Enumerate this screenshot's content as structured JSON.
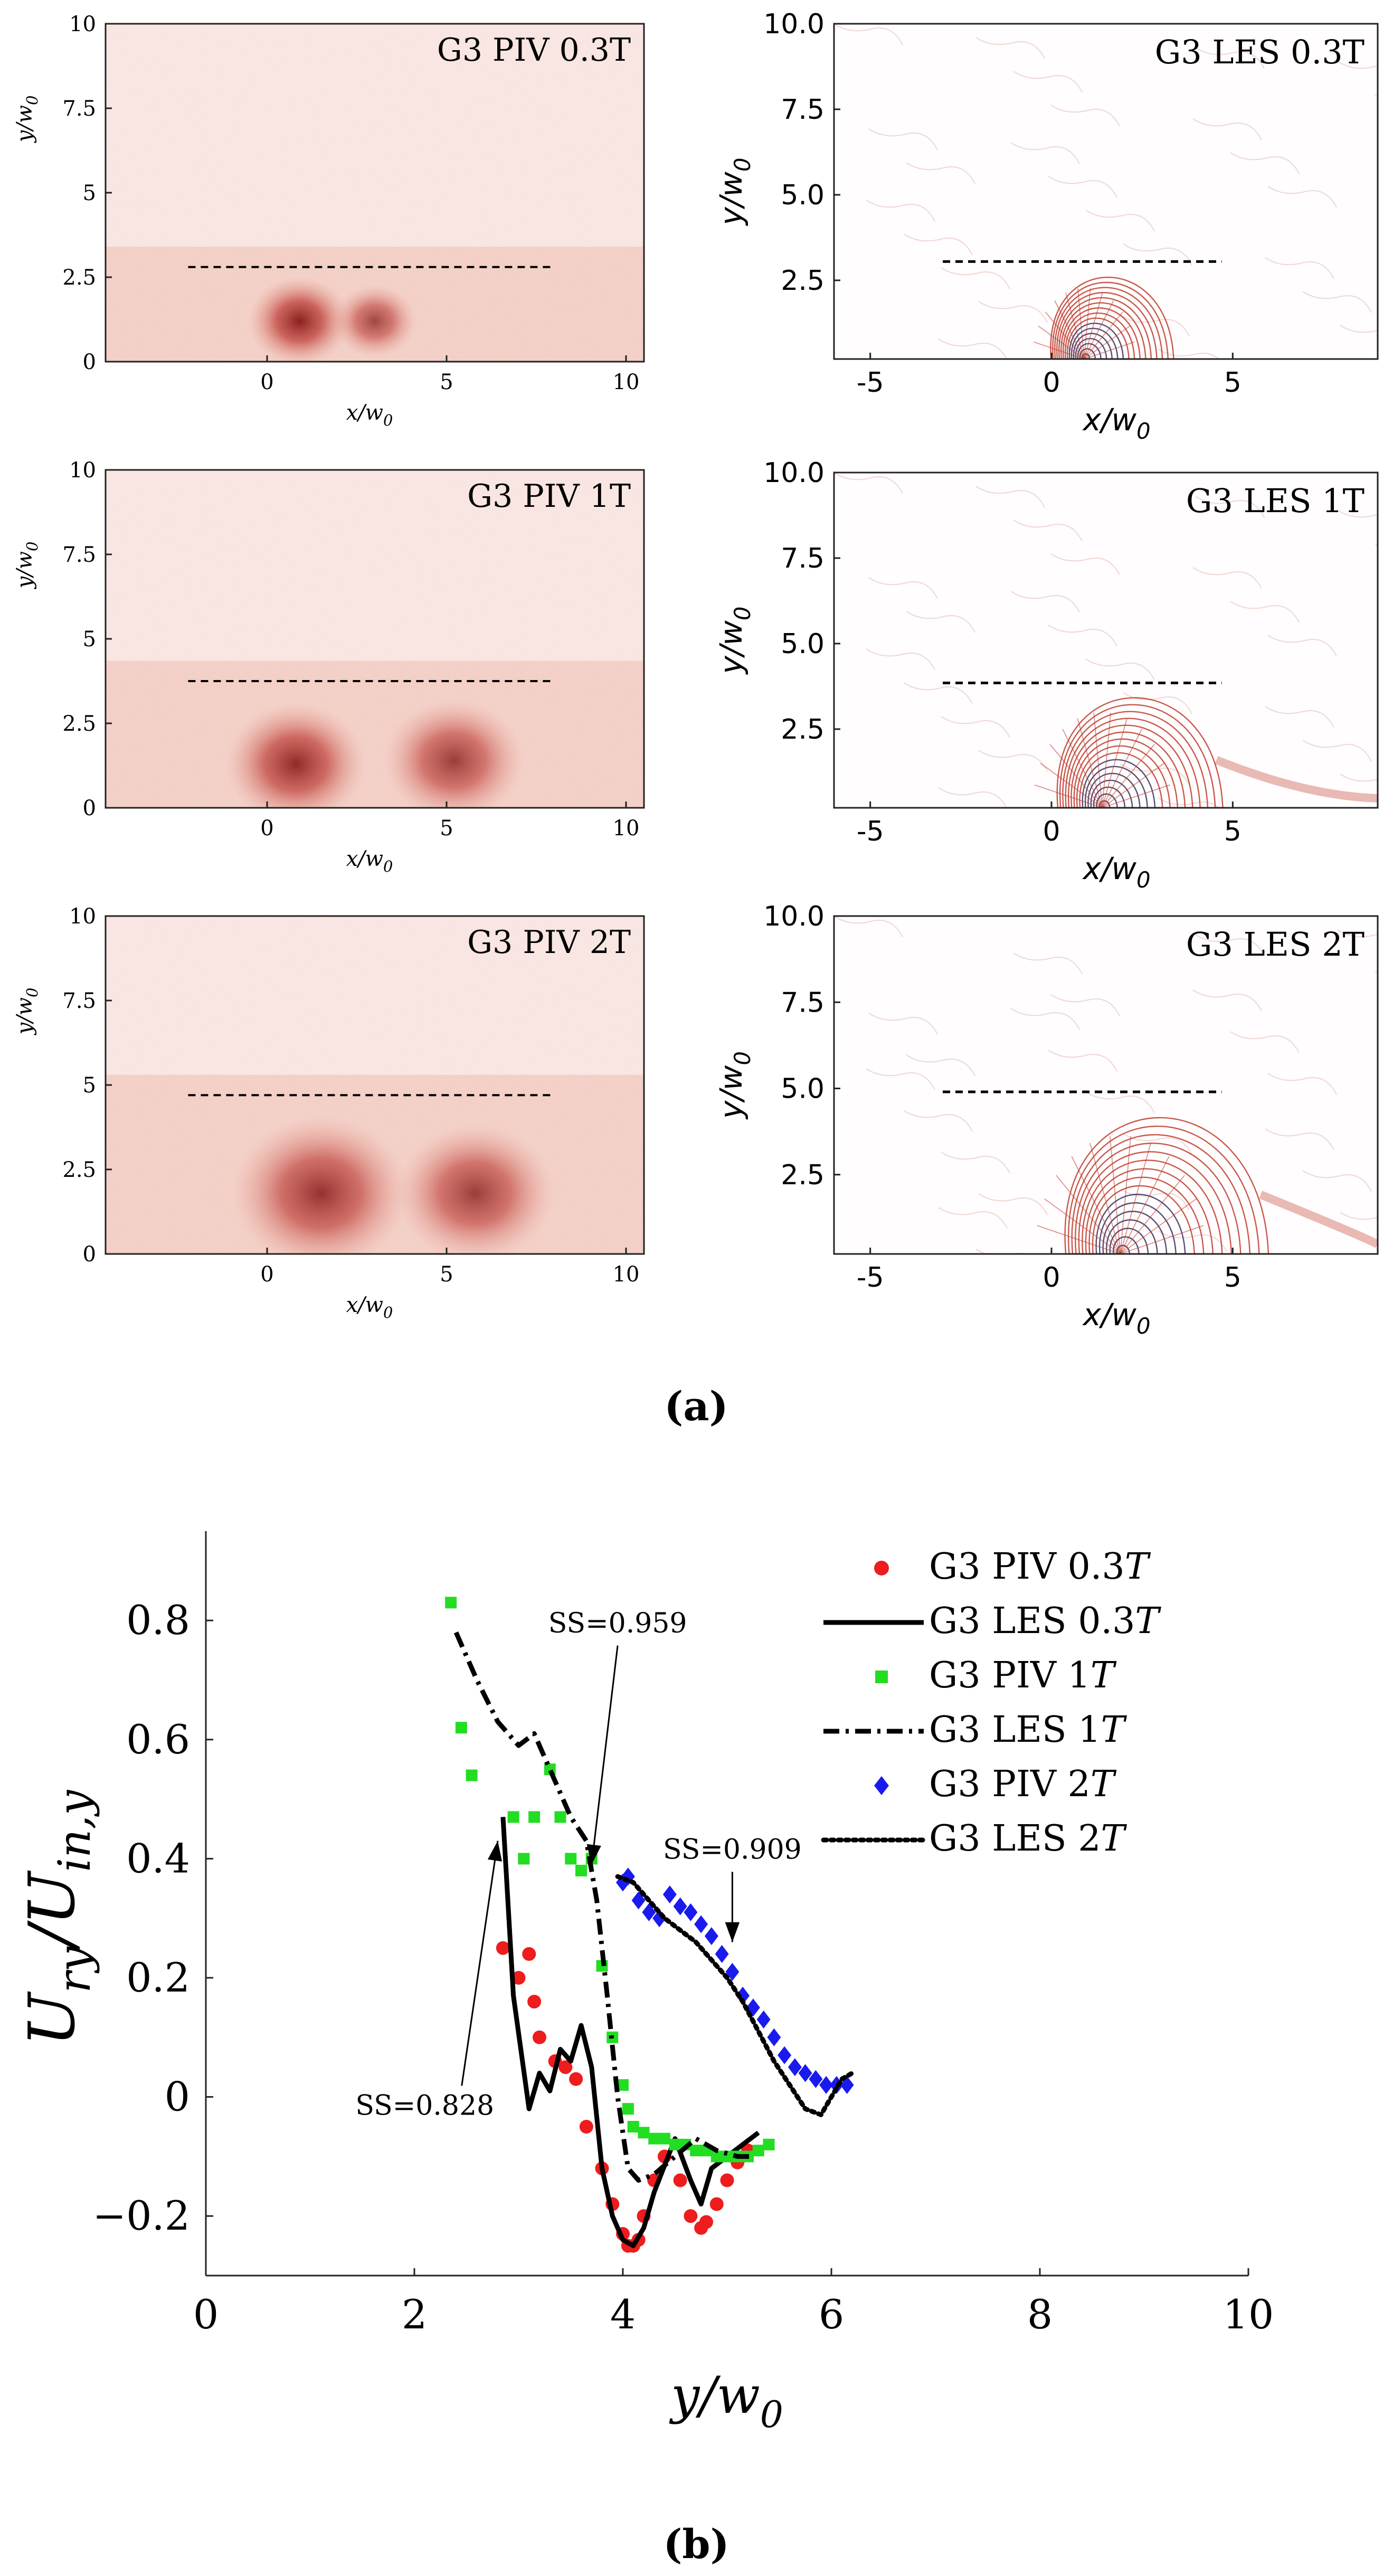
{
  "figure": {
    "label_a": "(a)",
    "label_b": "(b)",
    "colors": {
      "piv_heat": "#b0302c",
      "les_vector": "#c0392b",
      "les_core": "#2d2d55",
      "dash_line": "#000000"
    }
  },
  "piv_panels": [
    {
      "title": "G3 PIV 0.3T",
      "xlabel": "x/w",
      "xlabel_sub": "0",
      "ylabel": "y/w",
      "ylabel_sub": "0",
      "xticks": [
        "0",
        "5",
        "10"
      ],
      "yticks": [
        "0",
        "2.5",
        "5",
        "7.5",
        "10"
      ],
      "xlim": [
        -4.5,
        10.5
      ],
      "ylim": [
        0,
        10
      ],
      "dashed_y": 2.8,
      "dashed_x": [
        -2.2,
        8
      ],
      "blobs": [
        {
          "x": 0.9,
          "y": 1.2,
          "r": 1.1,
          "a": 0.95
        },
        {
          "x": 3.0,
          "y": 1.2,
          "r": 0.9,
          "a": 0.75
        }
      ]
    },
    {
      "title": "G3 PIV 1T",
      "xlabel": "x/w",
      "xlabel_sub": "0",
      "ylabel": "y/w",
      "ylabel_sub": "0",
      "xticks": [
        "0",
        "5",
        "10"
      ],
      "yticks": [
        "0",
        "2.5",
        "5",
        "7.5",
        "10"
      ],
      "xlim": [
        -4.5,
        10.5
      ],
      "ylim": [
        0,
        10
      ],
      "dashed_y": 3.75,
      "dashed_x": [
        -2.2,
        8
      ],
      "blobs": [
        {
          "x": 0.8,
          "y": 1.3,
          "r": 1.5,
          "a": 0.9
        },
        {
          "x": 5.2,
          "y": 1.4,
          "r": 1.5,
          "a": 0.8
        }
      ]
    },
    {
      "title": "G3 PIV 2T",
      "xlabel": "x/w",
      "xlabel_sub": "0",
      "ylabel": "y/w",
      "ylabel_sub": "0",
      "xticks": [
        "0",
        "5",
        "10"
      ],
      "yticks": [
        "0",
        "2.5",
        "5",
        "7.5",
        "10"
      ],
      "xlim": [
        -4.5,
        10.5
      ],
      "ylim": [
        0,
        10
      ],
      "dashed_y": 4.7,
      "dashed_x": [
        -2.2,
        8
      ],
      "blobs": [
        {
          "x": 1.5,
          "y": 1.8,
          "r": 1.9,
          "a": 0.85
        },
        {
          "x": 5.8,
          "y": 1.8,
          "r": 1.7,
          "a": 0.8
        }
      ]
    }
  ],
  "les_panels": [
    {
      "title": "G3 LES 0.3T",
      "xlabel": "x/w",
      "xlabel_sub": "0",
      "ylabel": "y/w",
      "ylabel_sub": "0",
      "xticks": [
        "-5",
        "0",
        "5"
      ],
      "yticks": [
        "2.5",
        "5.0",
        "7.5",
        "10.0"
      ],
      "xlim": [
        -6,
        9
      ],
      "ylim": [
        0.2,
        10
      ],
      "dashed_y": 3.05,
      "dashed_x": [
        -3,
        4.7
      ],
      "vortex": {
        "cx": 0.9,
        "r": 2.6,
        "tail": 0
      }
    },
    {
      "title": "G3 LES 1T",
      "xlabel": "x/w",
      "xlabel_sub": "0",
      "ylabel": "y/w",
      "ylabel_sub": "0",
      "xticks": [
        "-5",
        "0",
        "5"
      ],
      "yticks": [
        "2.5",
        "5.0",
        "7.5",
        "10.0"
      ],
      "xlim": [
        -6,
        9
      ],
      "ylim": [
        0.2,
        10
      ],
      "dashed_y": 3.85,
      "dashed_x": [
        -3,
        4.7
      ],
      "vortex": {
        "cx": 1.4,
        "r": 3.5,
        "tail": 1
      }
    },
    {
      "title": "G3 LES 2T",
      "xlabel": "x/w",
      "xlabel_sub": "0",
      "ylabel": "y/w",
      "ylabel_sub": "0",
      "xticks": [
        "-5",
        "0",
        "5"
      ],
      "yticks": [
        "2.5",
        "5.0",
        "7.5",
        "10.0"
      ],
      "xlim": [
        -6,
        9
      ],
      "ylim": [
        0.2,
        10
      ],
      "dashed_y": 4.9,
      "dashed_x": [
        -3,
        4.7
      ],
      "vortex": {
        "cx": 1.9,
        "r": 4.3,
        "tail": 1
      }
    }
  ],
  "chart_data": {
    "type": "scatter",
    "xlabel": "y/w",
    "xlabel_sub": "0",
    "ylabel": "U",
    "ylabel_sub1": "ry",
    "ylabel_sep": "/U",
    "ylabel_sub2": "in,y",
    "xlim": [
      0,
      10
    ],
    "ylim": [
      -0.3,
      0.95
    ],
    "xticks": [
      "0",
      "2",
      "4",
      "6",
      "8",
      "10"
    ],
    "yticks": [
      "−0.2",
      "0",
      "0.2",
      "0.4",
      "0.6",
      "0.8"
    ],
    "ytick_values": [
      -0.2,
      0,
      0.2,
      0.4,
      0.6,
      0.8
    ],
    "xtick_values": [
      0,
      2,
      4,
      6,
      8,
      10
    ],
    "legend": [
      {
        "label": "G3 PIV 0.3",
        "italic": "T",
        "marker": "circle",
        "color": "#ee1c1c"
      },
      {
        "label": "G3 LES 0.3",
        "italic": "T",
        "marker": "solid",
        "color": "#000000"
      },
      {
        "label": "G3 PIV 1",
        "italic": "T",
        "marker": "square",
        "color": "#22dd22"
      },
      {
        "label": "G3 LES 1",
        "italic": "T",
        "marker": "dashdot",
        "color": "#000000"
      },
      {
        "label": "G3 PIV 2",
        "italic": "T",
        "marker": "diamond",
        "color": "#1a1aee"
      },
      {
        "label": "G3 LES 2",
        "italic": "T",
        "marker": "dotted",
        "color": "#000000"
      }
    ],
    "series": [
      {
        "name": "G3 PIV 0.3T",
        "kind": "points",
        "marker": "circle",
        "color": "#ee1c1c",
        "x": [
          2.85,
          3.0,
          3.1,
          3.15,
          3.2,
          3.35,
          3.45,
          3.55,
          3.65,
          3.8,
          3.9,
          4.0,
          4.05,
          4.1,
          4.15,
          4.2,
          4.3,
          4.4,
          4.55,
          4.65,
          4.75,
          4.8,
          4.9,
          5.0,
          5.1,
          5.2
        ],
        "y": [
          0.25,
          0.2,
          0.24,
          0.16,
          0.1,
          0.06,
          0.05,
          0.03,
          -0.05,
          -0.12,
          -0.18,
          -0.23,
          -0.25,
          -0.25,
          -0.24,
          -0.2,
          -0.14,
          -0.1,
          -0.14,
          -0.2,
          -0.22,
          -0.21,
          -0.18,
          -0.14,
          -0.11,
          -0.09
        ]
      },
      {
        "name": "G3 LES 0.3T",
        "kind": "line",
        "dash": "solid",
        "color": "#000000",
        "x": [
          2.85,
          2.95,
          3.1,
          3.2,
          3.3,
          3.4,
          3.5,
          3.6,
          3.7,
          3.8,
          3.9,
          4.0,
          4.1,
          4.2,
          4.3,
          4.5,
          4.65,
          4.75,
          4.85,
          5.0,
          5.15,
          5.3
        ],
        "y": [
          0.47,
          0.17,
          -0.02,
          0.04,
          0.01,
          0.08,
          0.06,
          0.12,
          0.05,
          -0.12,
          -0.2,
          -0.24,
          -0.25,
          -0.22,
          -0.16,
          -0.07,
          -0.14,
          -0.18,
          -0.12,
          -0.1,
          -0.08,
          -0.06
        ]
      },
      {
        "name": "G3 PIV 1T",
        "kind": "points",
        "marker": "square",
        "color": "#22dd22",
        "x": [
          2.35,
          2.45,
          2.55,
          2.95,
          3.05,
          3.15,
          3.3,
          3.4,
          3.5,
          3.6,
          3.7,
          3.8,
          3.9,
          4.0,
          4.05,
          4.1,
          4.2,
          4.3,
          4.4,
          4.5,
          4.6,
          4.7,
          4.8,
          4.9,
          5.0,
          5.1,
          5.2,
          5.3,
          5.4
        ],
        "y": [
          0.83,
          0.62,
          0.54,
          0.47,
          0.4,
          0.47,
          0.55,
          0.47,
          0.4,
          0.38,
          0.4,
          0.22,
          0.1,
          0.02,
          -0.02,
          -0.05,
          -0.06,
          -0.07,
          -0.07,
          -0.08,
          -0.08,
          -0.09,
          -0.09,
          -0.1,
          -0.1,
          -0.1,
          -0.1,
          -0.09,
          -0.08
        ]
      },
      {
        "name": "G3 LES 1T",
        "kind": "line",
        "dash": "dashdot",
        "color": "#000000",
        "x": [
          2.4,
          2.6,
          2.8,
          3.0,
          3.15,
          3.3,
          3.5,
          3.65,
          3.75,
          3.85,
          3.95,
          4.05,
          4.15,
          4.3,
          4.5,
          4.7,
          4.9,
          5.1,
          5.25
        ],
        "y": [
          0.78,
          0.7,
          0.63,
          0.59,
          0.61,
          0.55,
          0.47,
          0.43,
          0.33,
          0.17,
          0.0,
          -0.12,
          -0.14,
          -0.13,
          -0.1,
          -0.07,
          -0.09,
          -0.1,
          -0.1
        ]
      },
      {
        "name": "G3 PIV 2T",
        "kind": "points",
        "marker": "diamond",
        "color": "#1a1aee",
        "x": [
          4.0,
          4.05,
          4.15,
          4.25,
          4.35,
          4.45,
          4.55,
          4.65,
          4.75,
          4.85,
          4.95,
          5.05,
          5.15,
          5.25,
          5.35,
          5.45,
          5.55,
          5.65,
          5.75,
          5.85,
          5.95,
          6.05,
          6.15
        ],
        "y": [
          0.36,
          0.37,
          0.33,
          0.31,
          0.3,
          0.34,
          0.32,
          0.31,
          0.29,
          0.27,
          0.24,
          0.21,
          0.17,
          0.15,
          0.13,
          0.1,
          0.07,
          0.05,
          0.04,
          0.03,
          0.02,
          0.02,
          0.02
        ]
      },
      {
        "name": "G3 LES 2T",
        "kind": "line",
        "dash": "dotted",
        "color": "#000000",
        "x": [
          3.95,
          4.1,
          4.25,
          4.4,
          4.55,
          4.7,
          4.85,
          5.0,
          5.15,
          5.3,
          5.45,
          5.6,
          5.75,
          5.9,
          6.0,
          6.1,
          6.2
        ],
        "y": [
          0.37,
          0.36,
          0.33,
          0.3,
          0.28,
          0.26,
          0.23,
          0.2,
          0.16,
          0.11,
          0.06,
          0.02,
          -0.02,
          -0.03,
          0.0,
          0.03,
          0.04
        ]
      }
    ],
    "annotations": [
      {
        "text": "SS=0.959",
        "tx": 3.95,
        "ty": 0.78,
        "ax": 3.7,
        "ay": 0.39
      },
      {
        "text": "SS=0.909",
        "tx": 5.05,
        "ty": 0.4,
        "ax": 5.05,
        "ay": 0.26
      },
      {
        "text": "SS=0.828",
        "tx": 2.1,
        "ty": -0.03,
        "ax": 2.8,
        "ay": 0.43
      }
    ]
  }
}
